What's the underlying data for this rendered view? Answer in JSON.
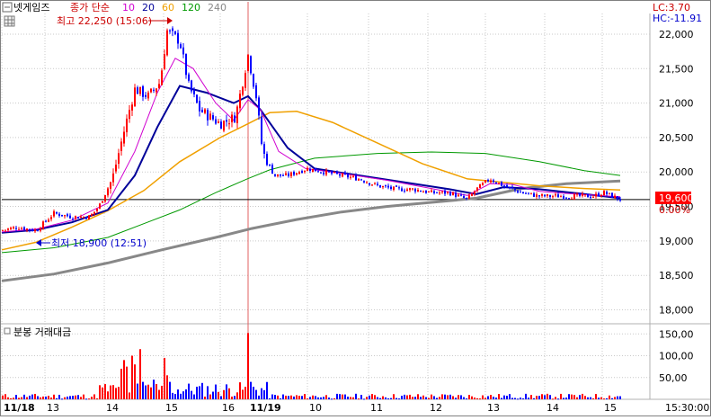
{
  "header": {
    "stock_name": "넷게임즈",
    "price_label": "종가 단순",
    "ma_periods": [
      "10",
      "20",
      "60",
      "120",
      "240"
    ],
    "lc_value": "LC:3.70",
    "hc_value": "HC:-11.91"
  },
  "colors": {
    "up": "#ff0000",
    "down": "#0000ff",
    "ma10": "#d000d0",
    "ma20": "#000099",
    "ma60": "#f0a000",
    "ma120": "#009900",
    "ma240": "#888888",
    "grid": "#c9c9c9",
    "current_box": "#ff0000",
    "vline": "#e06060",
    "header_label": "#cc0000"
  },
  "annotations": {
    "high_label": "최고 22,250 (15:06)",
    "low_label": "최저 18,900 (12:51)"
  },
  "current_price": {
    "label": "19,600",
    "change": "0.00%",
    "value": 19600
  },
  "volume_panel": {
    "title": "분봉 거래대금"
  },
  "chart_data": {
    "type": "candlestick",
    "price_axis": {
      "ticks": [
        18000,
        18500,
        19000,
        19500,
        20000,
        20500,
        21000,
        21500,
        22000
      ],
      "tick_labels": [
        "18,000",
        "18,500",
        "19,000",
        "19,500",
        "20,000",
        "20,500",
        "21,000",
        "21,500",
        "22,000"
      ],
      "range": [
        17850,
        22300
      ]
    },
    "volume_axis": {
      "ticks": [
        50,
        100,
        150
      ],
      "tick_labels": [
        "50,00",
        "100,00",
        "150,00"
      ],
      "range": [
        0,
        165
      ]
    },
    "time_axis": {
      "labels": [
        "11/18",
        "13",
        "14",
        "15",
        "16",
        "11/19",
        "10",
        "11",
        "12",
        "13",
        "14",
        "15",
        "15:30:00"
      ],
      "session_break": "11/19"
    },
    "overlays": [
      "MA 10",
      "MA 20",
      "MA 60",
      "MA 120",
      "MA 240"
    ],
    "high": 22250,
    "low": 18900,
    "last": 19600
  }
}
